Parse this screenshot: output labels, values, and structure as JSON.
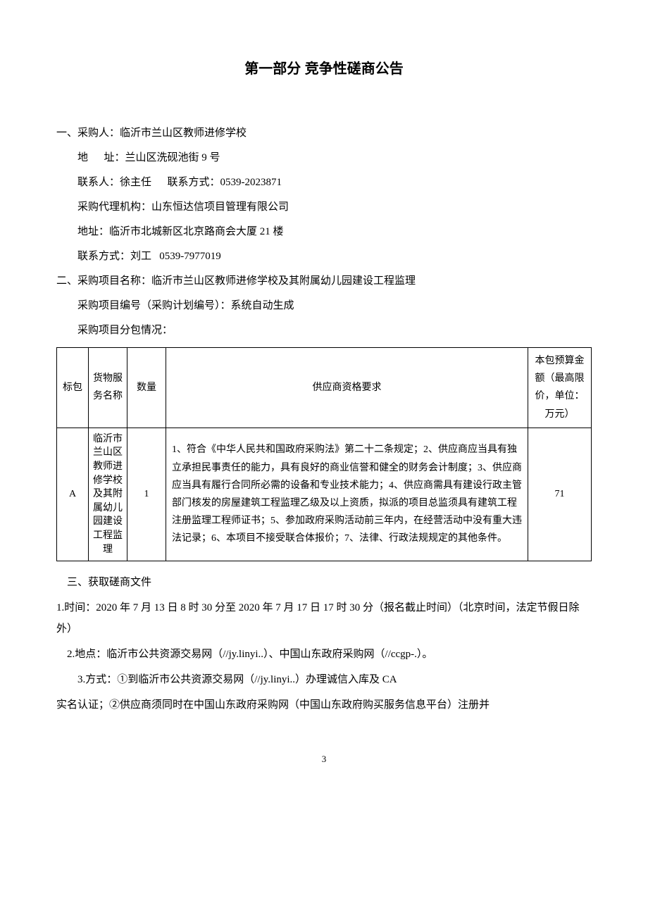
{
  "title": "第一部分 竞争性磋商公告",
  "section1": {
    "heading": "一、采购人：临沂市兰山区教师进修学校",
    "address_label": "地",
    "address_label2": "址：",
    "address": "兰山区洗砚池街 9 号",
    "contact_label": "联系人：",
    "contact_name": "徐主任",
    "contact_method_label": "联系方式：",
    "contact_method": "0539-2023871",
    "agency_label": "采购代理机构：",
    "agency": "山东恒达信项目管理有限公司",
    "agency_addr_label": "地址：",
    "agency_addr": "临沂市北城新区北京路商会大厦 21 楼",
    "agency_contact_label": "联系方式：",
    "agency_contact_name": "刘工",
    "agency_contact_phone": "0539-7977019"
  },
  "section2": {
    "heading": "二、采购项目名称：临沂市兰山区教师进修学校及其附属幼儿园建设工程监理",
    "project_no": "采购项目编号（采购计划编号）：系统自动生成",
    "package_info": "采购项目分包情况："
  },
  "table": {
    "headers": {
      "bid": "标包",
      "goods": "货物服务名称",
      "qty": "数量",
      "req": "供应商资格要求",
      "budget": "本包预算金额（最高限价，单位：万元）"
    },
    "rows": [
      {
        "bid": "A",
        "goods": "临沂市兰山区教师进修学校及其附属幼儿园建设工程监理",
        "qty": "1",
        "req": "1、符合《中华人民共和国政府采购法》第二十二条规定；2、供应商应当具有独立承担民事责任的能力，具有良好的商业信誉和健全的财务会计制度；3、供应商应当具有履行合同所必需的设备和专业技术能力；4、供应商需具有建设行政主管部门核发的房屋建筑工程监理乙级及以上资质，拟派的项目总监须具有建筑工程注册监理工程师证书；5、参加政府采购活动前三年内，在经营活动中没有重大违法记录；6、本项目不接受联合体报价；7、法律、行政法规规定的其他条件。",
        "budget": "71"
      }
    ]
  },
  "section3": {
    "heading": "三、获取磋商文件",
    "time": "1.时间：2020 年 7 月 13 日 8 时 30 分至 2020 年 7 月 17 日 17 时 30 分（报名截止时间）（北京时间，法定节假日除外）",
    "location": "2.地点：临沂市公共资源交易网（//jy.linyi..）、中国山东政府采购网（//ccgp-.）。",
    "method": "3.方式：①到临沂市公共资源交易网（//jy.linyi..）办理诚信入库及 CA",
    "method2": "实名认证；②供应商须同时在中国山东政府采购网（中国山东政府购买服务信息平台）注册并"
  },
  "page_number": "3"
}
